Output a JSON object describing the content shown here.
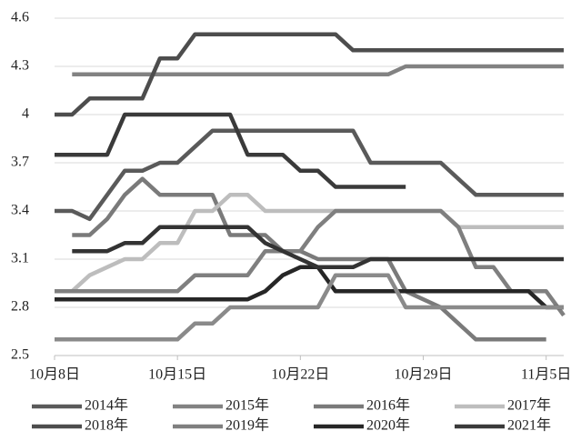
{
  "chart_data": {
    "type": "line",
    "categories": [
      "10月8日",
      null,
      null,
      null,
      null,
      null,
      null,
      "10月15日",
      null,
      null,
      null,
      null,
      null,
      null,
      "10月22日",
      null,
      null,
      null,
      null,
      null,
      null,
      "10月29日",
      null,
      null,
      null,
      null,
      null,
      null,
      "11月5日",
      null
    ],
    "ylim": [
      2.5,
      4.6
    ],
    "yticks": [
      2.5,
      2.8,
      3.1,
      3.4,
      3.7,
      4,
      4.3,
      4.6
    ],
    "grid": true,
    "series": [
      {
        "name": "2014年",
        "color": "#5a5a5a",
        "values": [
          3.4,
          3.4,
          3.35,
          3.5,
          3.65,
          3.65,
          3.7,
          3.7,
          3.8,
          3.9,
          3.9,
          3.9,
          3.9,
          3.9,
          3.9,
          3.9,
          3.9,
          3.9,
          3.7,
          3.7,
          3.7,
          3.7,
          3.7,
          3.6,
          3.5,
          3.5,
          3.5,
          3.5,
          3.5,
          3.5
        ]
      },
      {
        "name": "2015年",
        "color": "#828282",
        "values": [
          null,
          4.25,
          4.25,
          4.25,
          4.25,
          4.25,
          4.25,
          4.25,
          4.25,
          4.25,
          4.25,
          4.25,
          4.25,
          4.25,
          4.25,
          4.25,
          4.25,
          4.25,
          4.25,
          4.25,
          4.3,
          4.3,
          4.3,
          4.3,
          4.3,
          4.3,
          4.3,
          4.3,
          4.3,
          4.3
        ]
      },
      {
        "name": "2016年",
        "color": "#7a7a7a",
        "values": [
          null,
          3.25,
          3.25,
          3.35,
          3.5,
          3.6,
          3.5,
          3.5,
          3.5,
          3.5,
          3.25,
          3.25,
          3.25,
          3.15,
          3.15,
          3.1,
          3.1,
          3.1,
          3.1,
          3.1,
          2.9,
          2.85,
          2.8,
          2.7,
          2.6,
          2.6,
          2.6,
          2.6,
          2.6,
          null
        ]
      },
      {
        "name": "2017年",
        "color": "#bdbdbd",
        "values": [
          2.9,
          2.9,
          3.0,
          3.05,
          3.1,
          3.1,
          3.2,
          3.2,
          3.4,
          3.4,
          3.5,
          3.5,
          3.4,
          3.4,
          3.4,
          3.4,
          3.4,
          3.4,
          3.4,
          3.4,
          3.4,
          3.4,
          3.4,
          3.3,
          3.3,
          3.3,
          3.3,
          3.3,
          3.3,
          3.3
        ]
      },
      {
        "name": "2018年",
        "color": "#4d4d4d",
        "values": [
          4.0,
          4.0,
          4.1,
          4.1,
          4.1,
          4.1,
          4.35,
          4.35,
          4.5,
          4.5,
          4.5,
          4.5,
          4.5,
          4.5,
          4.5,
          4.5,
          4.5,
          4.4,
          4.4,
          4.4,
          4.4,
          4.4,
          4.4,
          4.4,
          4.4,
          4.4,
          4.4,
          4.4,
          4.4,
          4.4
        ]
      },
      {
        "name": "2019年",
        "color": "#7f7f7f",
        "values": [
          2.9,
          2.9,
          2.9,
          2.9,
          2.9,
          2.9,
          2.9,
          2.9,
          3.0,
          3.0,
          3.0,
          3.0,
          3.15,
          3.15,
          3.15,
          3.3,
          3.4,
          3.4,
          3.4,
          3.4,
          3.4,
          3.4,
          3.4,
          3.3,
          3.05,
          3.05,
          2.9,
          2.9,
          2.9,
          2.75
        ]
      },
      {
        "name": "2020年",
        "color": "#262626",
        "values": [
          2.85,
          2.85,
          2.85,
          2.85,
          2.85,
          2.85,
          2.85,
          2.85,
          2.85,
          2.85,
          2.85,
          2.85,
          2.9,
          3.0,
          3.05,
          3.05,
          2.9,
          2.9,
          2.9,
          2.9,
          2.9,
          2.9,
          2.9,
          2.9,
          2.9,
          2.9,
          2.9,
          2.9,
          2.8,
          2.8
        ]
      },
      {
        "name": "2021年",
        "color": "#3a3a3a",
        "values": [
          3.75,
          3.75,
          3.75,
          3.75,
          4.0,
          4.0,
          4.0,
          4.0,
          4.0,
          4.0,
          4.0,
          3.75,
          3.75,
          3.75,
          3.65,
          3.65,
          3.55,
          3.55,
          3.55,
          3.55,
          3.55,
          null,
          null,
          null,
          null,
          null,
          null,
          null,
          null,
          null
        ]
      },
      {
        "color": "#8a8a8a",
        "values": [
          2.6,
          2.6,
          2.6,
          2.6,
          2.6,
          2.6,
          2.6,
          2.6,
          2.7,
          2.7,
          2.8,
          2.8,
          2.8,
          2.8,
          2.8,
          2.8,
          3.0,
          3.0,
          3.0,
          3.0,
          2.8,
          2.8,
          2.8,
          2.8,
          2.8,
          2.8,
          2.8,
          2.8,
          2.8,
          2.8
        ]
      },
      {
        "color": "#333333",
        "values": [
          null,
          3.15,
          3.15,
          3.15,
          3.2,
          3.2,
          3.3,
          3.3,
          3.3,
          3.3,
          3.3,
          3.3,
          3.2,
          3.15,
          3.1,
          3.05,
          3.05,
          3.05,
          3.1,
          3.1,
          3.1,
          3.1,
          3.1,
          3.1,
          3.1,
          3.1,
          3.1,
          3.1,
          3.1,
          3.1
        ]
      }
    ]
  }
}
